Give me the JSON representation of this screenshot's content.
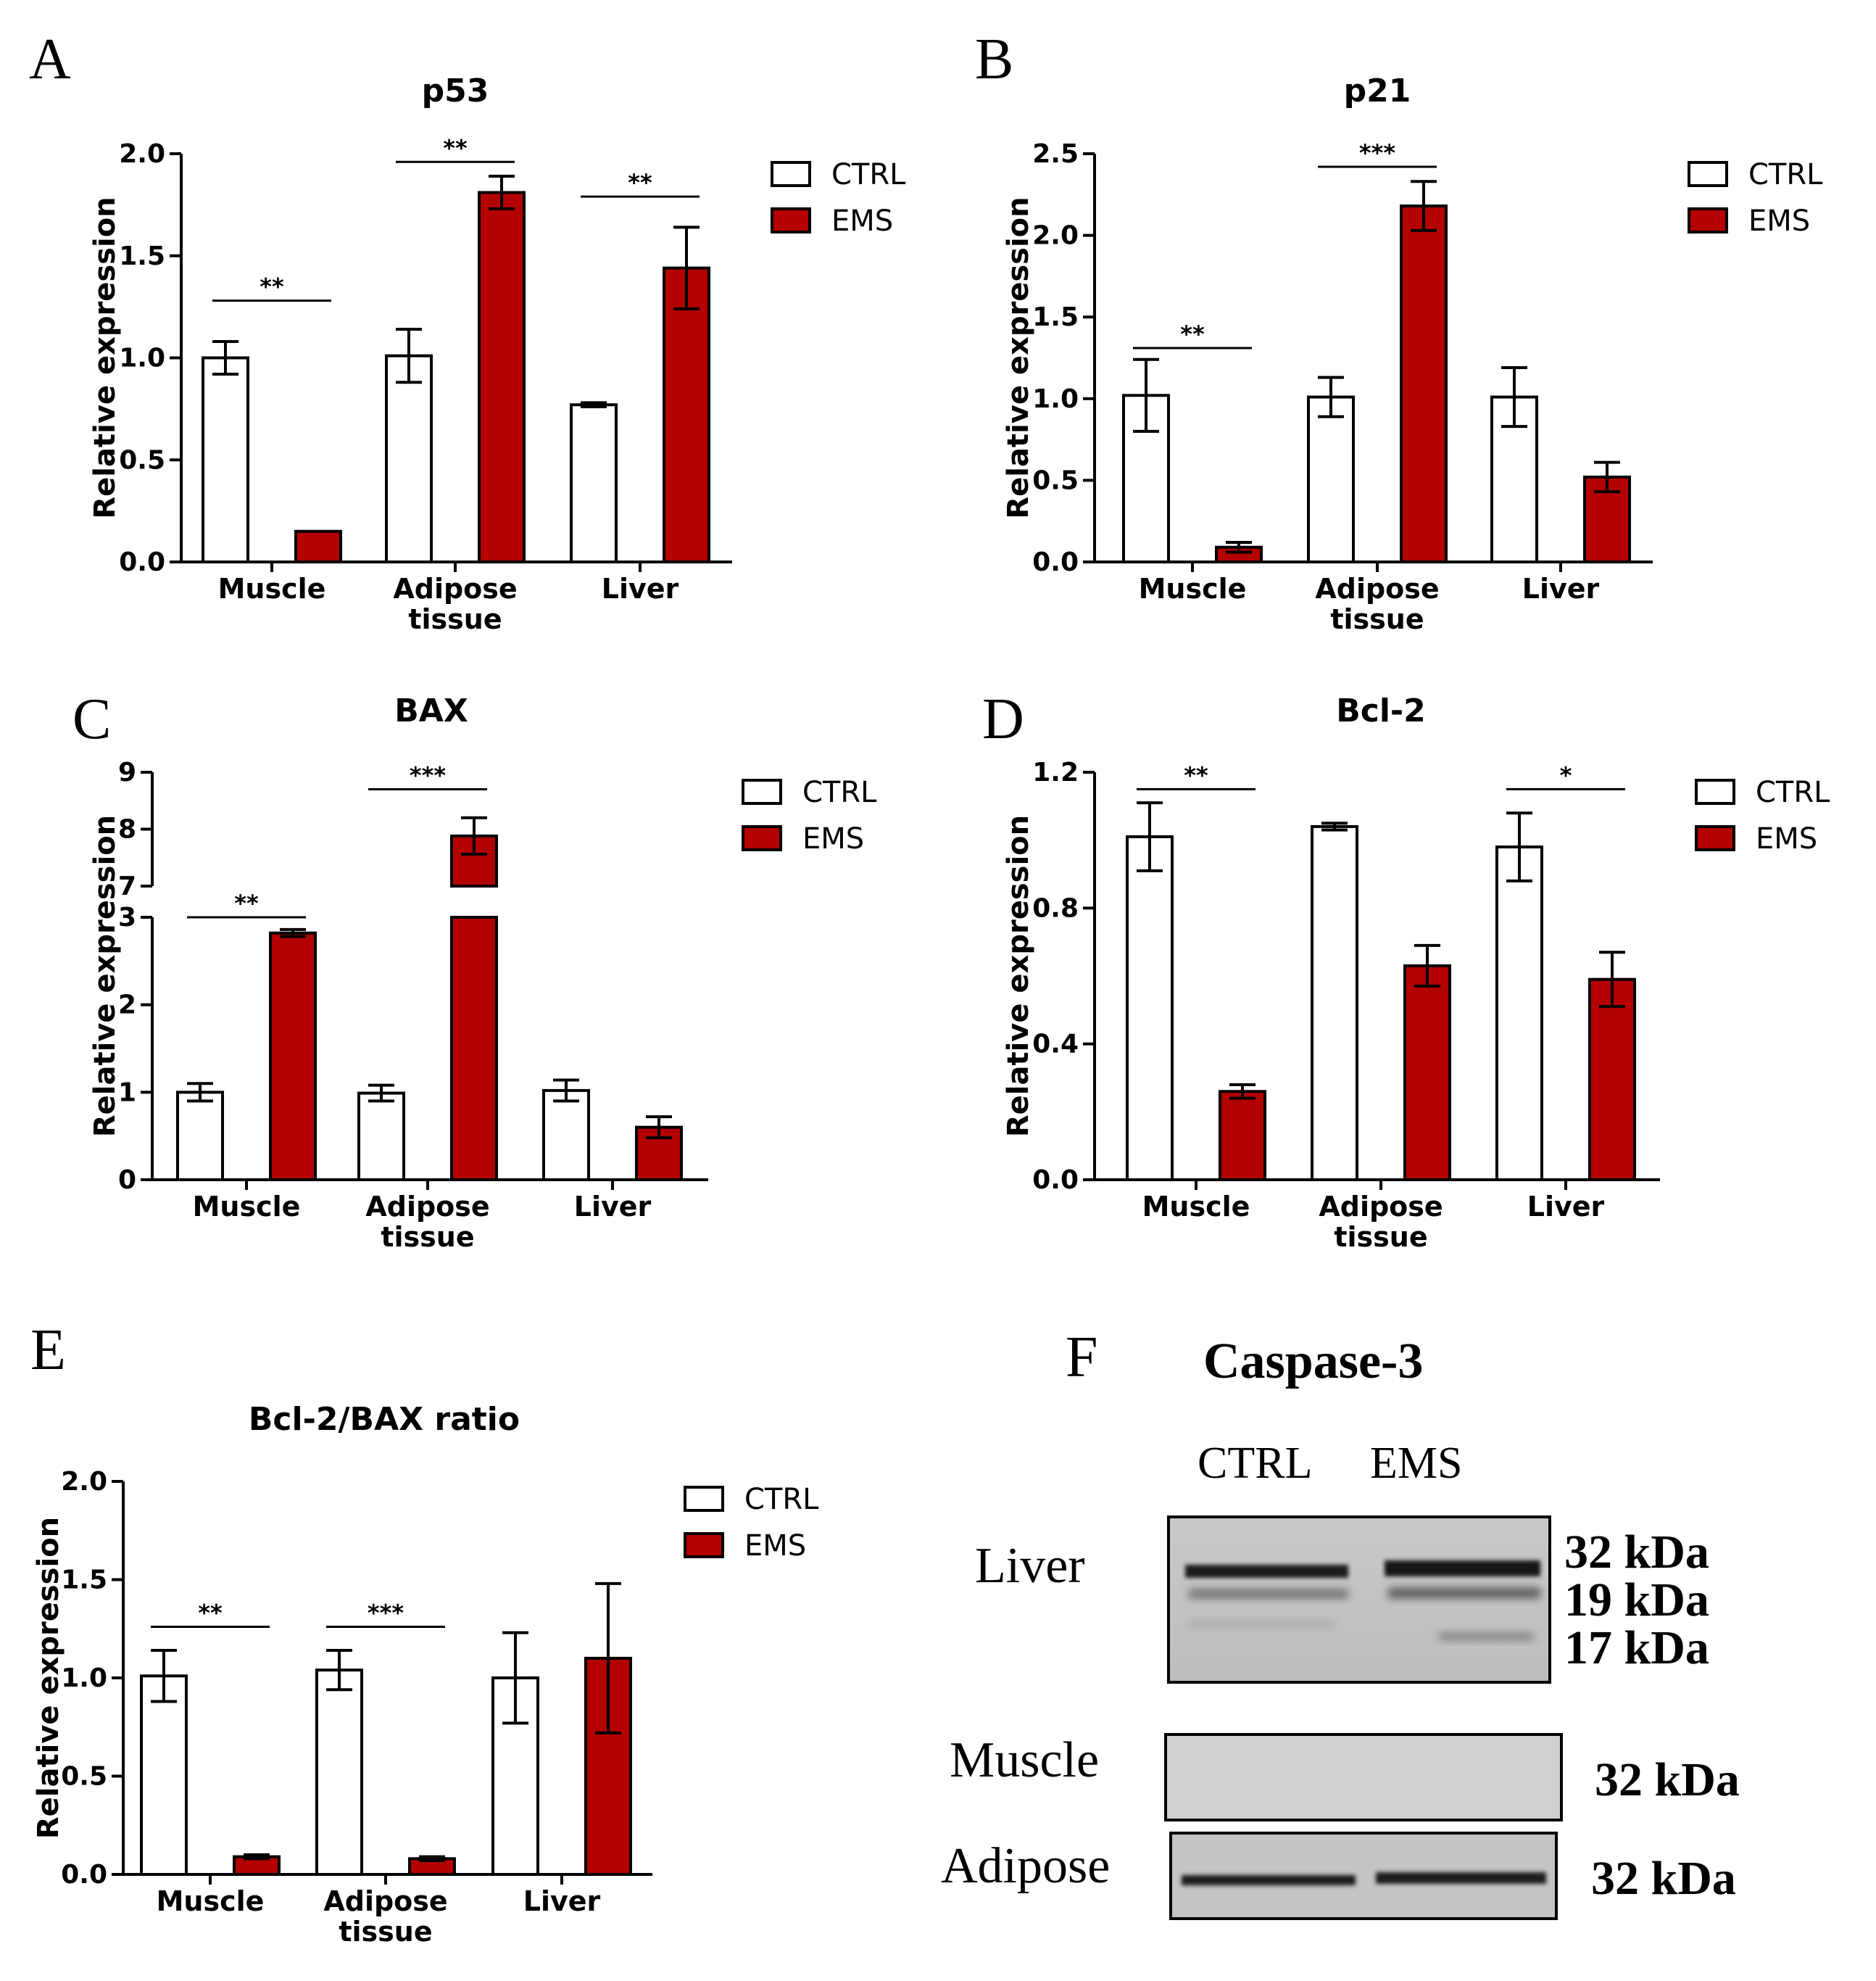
{
  "figure": {
    "panels": [
      "A",
      "B",
      "C",
      "D",
      "E",
      "F"
    ],
    "legend": {
      "ctrl": "CTRL",
      "ems": "EMS"
    },
    "colors": {
      "ctrl": "#ffffff",
      "ems": "#b30000",
      "axis": "#000000"
    }
  },
  "chart_data": [
    {
      "panel": "A",
      "type": "bar",
      "title": "p53",
      "ylabel": "Relative expression",
      "xlabel": "",
      "categories": [
        "Muscle",
        "Adipose\ntissue",
        "Liver"
      ],
      "ylim": [
        0,
        2.0
      ],
      "yticks": [
        "0.0",
        "0.5",
        "1.0",
        "1.5",
        "2.0"
      ],
      "series": [
        {
          "name": "CTRL",
          "values": [
            1.0,
            1.01,
            0.77
          ],
          "errors": [
            0.08,
            0.13,
            0.01
          ]
        },
        {
          "name": "EMS",
          "values": [
            0.15,
            1.81,
            1.44
          ],
          "errors": [
            0.0,
            0.08,
            0.2
          ]
        }
      ],
      "significance": [
        "**",
        "**",
        "**"
      ],
      "sig_levels": [
        1.28,
        1.96,
        1.79
      ]
    },
    {
      "panel": "B",
      "type": "bar",
      "title": "p21",
      "ylabel": "Relative expression",
      "xlabel": "",
      "categories": [
        "Muscle",
        "Adipose\ntissue",
        "Liver"
      ],
      "ylim": [
        0,
        2.5
      ],
      "yticks": [
        "0.0",
        "0.5",
        "1.0",
        "1.5",
        "2.0",
        "2.5"
      ],
      "series": [
        {
          "name": "CTRL",
          "values": [
            1.02,
            1.01,
            1.01
          ],
          "errors": [
            0.22,
            0.12,
            0.18
          ]
        },
        {
          "name": "EMS",
          "values": [
            0.09,
            2.18,
            0.52
          ],
          "errors": [
            0.03,
            0.15,
            0.09
          ]
        }
      ],
      "significance": [
        "**",
        "***",
        ""
      ],
      "sig_levels": [
        1.31,
        2.42,
        null
      ]
    },
    {
      "panel": "C",
      "type": "bar",
      "title": "BAX",
      "ylabel": "Relative expression",
      "xlabel": "",
      "categories": [
        "Muscle",
        "Adipose\ntissue",
        "Liver"
      ],
      "ylim": [
        0,
        9
      ],
      "axis_break": [
        3,
        7
      ],
      "yticks": [
        "0",
        "1",
        "2",
        "3",
        "7",
        "8",
        "9"
      ],
      "series": [
        {
          "name": "CTRL",
          "values": [
            1.0,
            0.99,
            1.02
          ],
          "errors": [
            0.1,
            0.09,
            0.12
          ]
        },
        {
          "name": "EMS",
          "values": [
            2.82,
            7.88,
            0.6
          ],
          "errors": [
            0.04,
            0.32,
            0.12
          ]
        }
      ],
      "significance": [
        "**",
        "***",
        ""
      ],
      "sig_levels": [
        3.0,
        8.7,
        null
      ]
    },
    {
      "panel": "D",
      "type": "bar",
      "title": "Bcl-2",
      "ylabel": "Relative expression",
      "xlabel": "",
      "categories": [
        "Muscle",
        "Adipose\ntissue",
        "Liver"
      ],
      "ylim": [
        0,
        1.2
      ],
      "yticks": [
        "0.0",
        "0.4",
        "0.8",
        "1.2"
      ],
      "series": [
        {
          "name": "CTRL",
          "values": [
            1.01,
            1.04,
            0.98
          ],
          "errors": [
            0.1,
            0.01,
            0.1
          ]
        },
        {
          "name": "EMS",
          "values": [
            0.26,
            0.63,
            0.59
          ],
          "errors": [
            0.02,
            0.06,
            0.08
          ]
        }
      ],
      "significance": [
        "**",
        "",
        "*"
      ],
      "sig_levels": [
        1.15,
        null,
        1.15
      ]
    },
    {
      "panel": "E",
      "type": "bar",
      "title": "Bcl-2/BAX ratio",
      "ylabel": "Relative expression",
      "xlabel": "",
      "categories": [
        "Muscle",
        "Adipose\ntissue",
        "Liver"
      ],
      "ylim": [
        0,
        2.0
      ],
      "yticks": [
        "0.0",
        "0.5",
        "1.0",
        "1.5",
        "2.0"
      ],
      "series": [
        {
          "name": "CTRL",
          "values": [
            1.01,
            1.04,
            1.0
          ],
          "errors": [
            0.13,
            0.1,
            0.23
          ]
        },
        {
          "name": "EMS",
          "values": [
            0.09,
            0.08,
            1.1
          ],
          "errors": [
            0.01,
            0.01,
            0.38
          ]
        }
      ],
      "significance": [
        "**",
        "***",
        ""
      ],
      "sig_levels": [
        1.26,
        1.26,
        null
      ]
    }
  ],
  "blot": {
    "panel": "F",
    "title": "Caspase-3",
    "columns": [
      "CTRL",
      "EMS"
    ],
    "rows": [
      {
        "tissue": "Liver",
        "bands": [
          "32 kDa",
          "19 kDa",
          "17 kDa"
        ]
      },
      {
        "tissue": "Muscle",
        "bands": [
          "32 kDa"
        ]
      },
      {
        "tissue": "Adipose",
        "bands": [
          "32 kDa"
        ]
      }
    ]
  }
}
